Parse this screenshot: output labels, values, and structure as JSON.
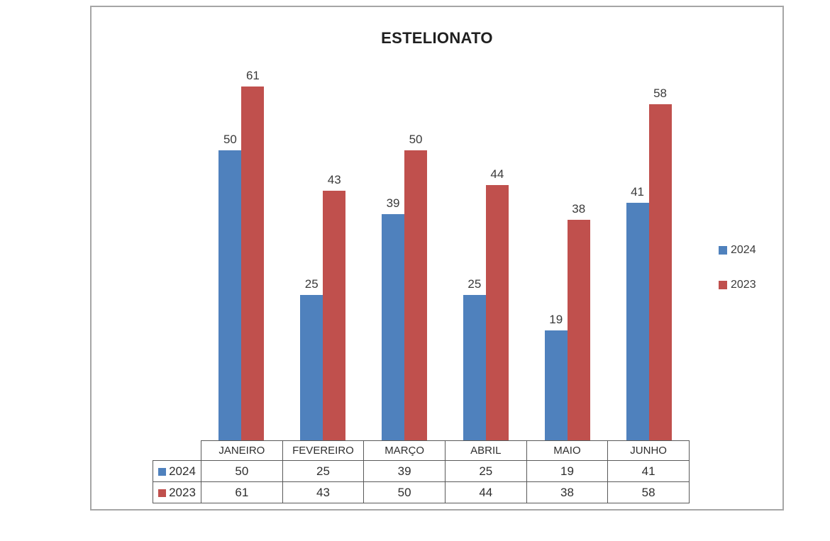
{
  "chart_data": {
    "type": "bar",
    "title": "ESTELIONATO",
    "categories": [
      "JANEIRO",
      "FEVEREIRO",
      "MARÇO",
      "ABRIL",
      "MAIO",
      "JUNHO"
    ],
    "series": [
      {
        "name": "2024",
        "color": "#4F81BD",
        "values": [
          50,
          25,
          39,
          25,
          19,
          41
        ]
      },
      {
        "name": "2023",
        "color": "#C0504D",
        "values": [
          61,
          43,
          50,
          44,
          38,
          58
        ]
      }
    ],
    "xlabel": "",
    "ylabel": "",
    "ylim": [
      0,
      61
    ],
    "grid": false,
    "legend_position": "right",
    "data_labels": true,
    "data_table_shown": true
  },
  "colors": {
    "background": "#ffffff",
    "frame_border": "#a6a6a6",
    "table_border": "#595959",
    "text": "#3a3a3a"
  }
}
